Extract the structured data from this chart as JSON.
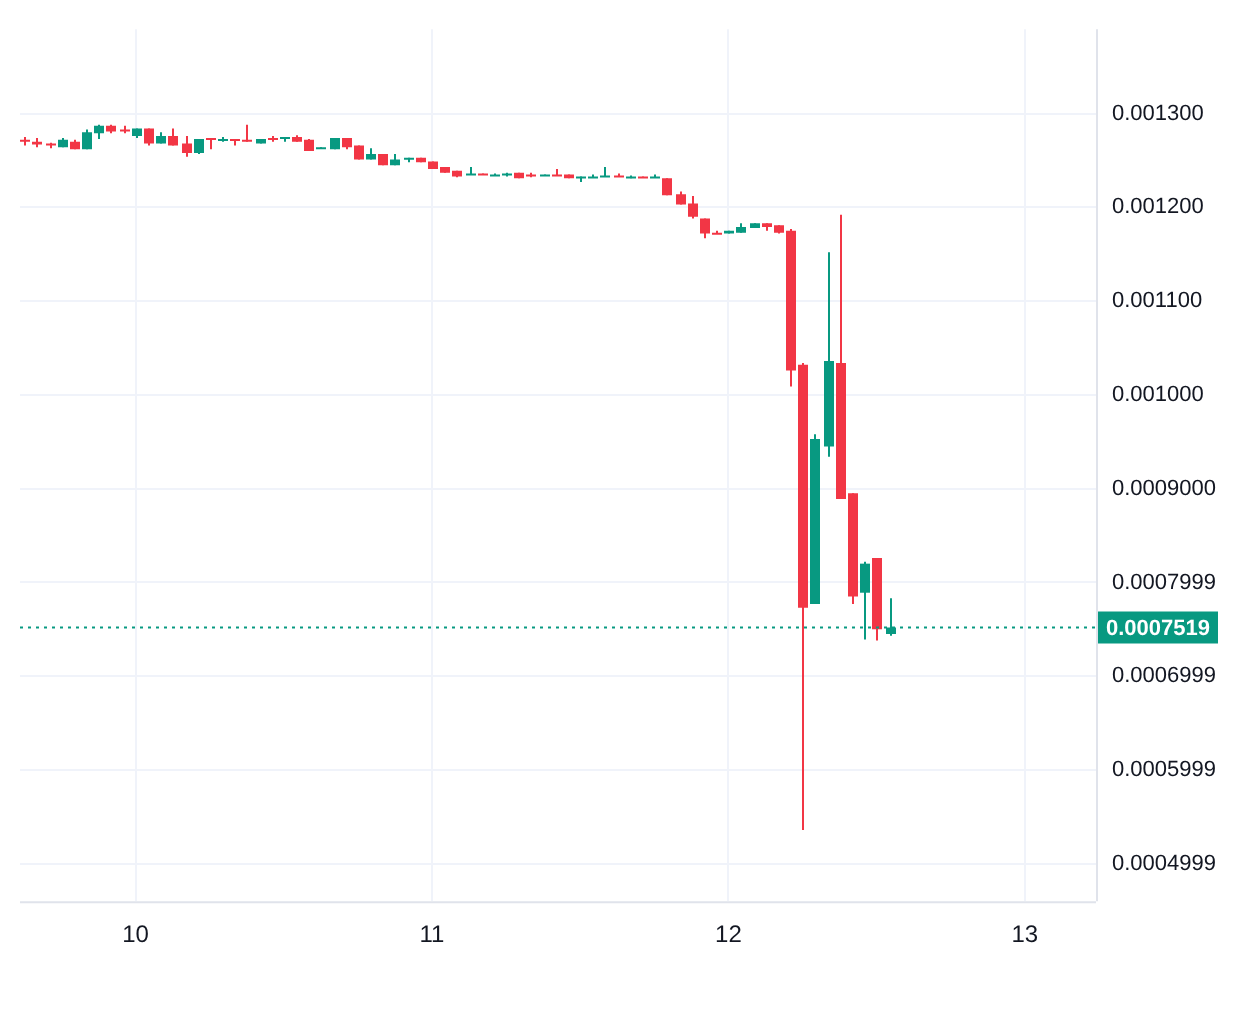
{
  "chart_data": {
    "type": "candlestick",
    "x": [
      9.625,
      9.6667,
      9.7083,
      9.75,
      9.7917,
      9.8333,
      9.875,
      9.9167,
      9.9583,
      10,
      10.0417,
      10.0833,
      10.125,
      10.1667,
      10.2083,
      10.25,
      10.2917,
      10.3333,
      10.375,
      10.4167,
      10.4583,
      10.5,
      10.5417,
      10.5833,
      10.625,
      10.6667,
      10.7083,
      10.75,
      10.7917,
      10.8333,
      10.875,
      10.9167,
      10.9583,
      11,
      11.0417,
      11.0833,
      11.125,
      11.1667,
      11.2083,
      11.25,
      11.2917,
      11.3333,
      11.375,
      11.4167,
      11.4583,
      11.5,
      11.5417,
      11.5833,
      11.625,
      11.6667,
      11.7083,
      11.75,
      11.7917,
      11.8333,
      11.875,
      11.9167,
      11.9583,
      12,
      12.0417,
      12.0833,
      12.125,
      12.1667,
      12.2083,
      12.25,
      12.2917,
      12.3333,
      12.375,
      12.4167,
      12.4583,
      12.5,
      12.5417
    ],
    "ohlc": [
      [
        0.001272,
        0.001275,
        0.001266,
        0.001271
      ],
      [
        0.00127,
        0.001274,
        0.001264,
        0.001267
      ],
      [
        0.001268,
        0.001269,
        0.001263,
        0.001266
      ],
      [
        0.001264,
        0.001274,
        0.001264,
        0.001272
      ],
      [
        0.00127,
        0.001272,
        0.001262,
        0.001262
      ],
      [
        0.001262,
        0.001283,
        0.001262,
        0.00128
      ],
      [
        0.001279,
        0.001288,
        0.001273,
        0.001287
      ],
      [
        0.001287,
        0.001288,
        0.001279,
        0.001281
      ],
      [
        0.001283,
        0.001287,
        0.001279,
        0.001282
      ],
      [
        0.001276,
        0.001284,
        0.001274,
        0.001284
      ],
      [
        0.001284,
        0.001284,
        0.001266,
        0.001268
      ],
      [
        0.001268,
        0.00128,
        0.001268,
        0.001276
      ],
      [
        0.001276,
        0.001284,
        0.001266,
        0.001266
      ],
      [
        0.001268,
        0.001276,
        0.001254,
        0.001258
      ],
      [
        0.001258,
        0.001273,
        0.001257,
        0.001273
      ],
      [
        0.001274,
        0.001274,
        0.001262,
        0.001273
      ],
      [
        0.001272,
        0.001275,
        0.00127,
        0.001273
      ],
      [
        0.001273,
        0.001273,
        0.001266,
        0.001272
      ],
      [
        0.001272,
        0.001288,
        0.00127,
        0.001271
      ],
      [
        0.001268,
        0.001273,
        0.001268,
        0.001273
      ],
      [
        0.001274,
        0.001276,
        0.00127,
        0.001273
      ],
      [
        0.001274,
        0.001275,
        0.00127,
        0.001275
      ],
      [
        0.001275,
        0.001277,
        0.00127,
        0.00127
      ],
      [
        0.001272,
        0.001273,
        0.00126,
        0.00126
      ],
      [
        0.001263,
        0.001264,
        0.001263,
        0.001264
      ],
      [
        0.001262,
        0.001274,
        0.001262,
        0.001274
      ],
      [
        0.001274,
        0.001274,
        0.001262,
        0.001264
      ],
      [
        0.001266,
        0.001266,
        0.001251,
        0.001251
      ],
      [
        0.001251,
        0.001263,
        0.001251,
        0.001257
      ],
      [
        0.001257,
        0.001257,
        0.001245,
        0.001245
      ],
      [
        0.001245,
        0.001257,
        0.001245,
        0.001251
      ],
      [
        0.001252,
        0.001253,
        0.001248,
        0.001253
      ],
      [
        0.001253,
        0.001253,
        0.001248,
        0.001248
      ],
      [
        0.001249,
        0.001249,
        0.001241,
        0.001241
      ],
      [
        0.001243,
        0.001243,
        0.001237,
        0.001237
      ],
      [
        0.001239,
        0.001239,
        0.001232,
        0.001233
      ],
      [
        0.001235,
        0.001243,
        0.001235,
        0.001236
      ],
      [
        0.001236,
        0.001236,
        0.001235,
        0.001235
      ],
      [
        0.001234,
        0.001236,
        0.001234,
        0.001235
      ],
      [
        0.001235,
        0.001237,
        0.001233,
        0.001236
      ],
      [
        0.001237,
        0.001237,
        0.001231,
        0.001231
      ],
      [
        0.001235,
        0.001237,
        0.001232,
        0.001234
      ],
      [
        0.001234,
        0.001235,
        0.001234,
        0.001235
      ],
      [
        0.001235,
        0.001241,
        0.001234,
        0.001234
      ],
      [
        0.001235,
        0.001235,
        0.001231,
        0.001231
      ],
      [
        0.001232,
        0.001233,
        0.001227,
        0.001233
      ],
      [
        0.001232,
        0.001235,
        0.001232,
        0.001233
      ],
      [
        0.001233,
        0.001243,
        0.001233,
        0.001234
      ],
      [
        0.001234,
        0.001236,
        0.001233,
        0.001233
      ],
      [
        0.001232,
        0.001234,
        0.001231,
        0.001233
      ],
      [
        0.001233,
        0.001233,
        0.001232,
        0.001232
      ],
      [
        0.001232,
        0.001235,
        0.001232,
        0.001233
      ],
      [
        0.001231,
        0.001231,
        0.001213,
        0.001213
      ],
      [
        0.001214,
        0.001217,
        0.001203,
        0.001203
      ],
      [
        0.001204,
        0.001212,
        0.001188,
        0.00119
      ],
      [
        0.001188,
        0.001188,
        0.001167,
        0.001172
      ],
      [
        0.001173,
        0.001175,
        0.001172,
        0.001172
      ],
      [
        0.001172,
        0.001175,
        0.001172,
        0.001175
      ],
      [
        0.001173,
        0.001183,
        0.001173,
        0.001179
      ],
      [
        0.001178,
        0.001183,
        0.001178,
        0.001183
      ],
      [
        0.001183,
        0.001183,
        0.001175,
        0.001179
      ],
      [
        0.001181,
        0.001181,
        0.001172,
        0.001173
      ],
      [
        0.001175,
        0.001177,
        0.001009,
        0.001026
      ],
      [
        0.001032,
        0.001034,
        0.000536,
        0.000773
      ],
      [
        0.000777,
        0.000958,
        0.000777,
        0.000953
      ],
      [
        0.000945,
        0.001152,
        0.000934,
        0.001036
      ],
      [
        0.001034,
        0.001192,
        0.000889,
        0.000889
      ],
      [
        0.000895,
        0.000895,
        0.000777,
        0.000785
      ],
      [
        0.000789,
        0.000822,
        0.000739,
        0.00082
      ],
      [
        0.000826,
        0.000826,
        0.000738,
        0.00075
      ],
      [
        0.000745,
        0.000783,
        0.000743,
        0.0007519
      ]
    ],
    "colors": [
      "#f23645",
      "#f23645",
      "#f23645",
      "#089981",
      "#f23645",
      "#089981",
      "#089981",
      "#f23645",
      "#f23645",
      "#089981",
      "#f23645",
      "#089981",
      "#f23645",
      "#f23645",
      "#089981",
      "#f23645",
      "#089981",
      "#f23645",
      "#f23645",
      "#089981",
      "#f23645",
      "#089981",
      "#f23645",
      "#f23645",
      "#089981",
      "#089981",
      "#f23645",
      "#f23645",
      "#089981",
      "#f23645",
      "#089981",
      "#089981",
      "#f23645",
      "#f23645",
      "#f23645",
      "#f23645",
      "#089981",
      "#f23645",
      "#089981",
      "#089981",
      "#f23645",
      "#f23645",
      "#089981",
      "#f23645",
      "#f23645",
      "#089981",
      "#089981",
      "#089981",
      "#f23645",
      "#089981",
      "#f23645",
      "#089981",
      "#f23645",
      "#f23645",
      "#f23645",
      "#f23645",
      "#f23645",
      "#089981",
      "#089981",
      "#089981",
      "#f23645",
      "#f23645",
      "#f23645",
      "#f23645",
      "#089981",
      "#089981",
      "#f23645",
      "#f23645",
      "#089981",
      "#f23645",
      "#089981"
    ],
    "xlim": [
      9.61,
      13.24
    ],
    "xticks": [
      10,
      11,
      12,
      13
    ],
    "ylim": [
      0.00046,
      0.00139
    ],
    "yticks": [
      {
        "value": 0.0004999,
        "label": "0.0004999"
      },
      {
        "value": 0.0005999,
        "label": "0.0005999"
      },
      {
        "value": 0.0006999,
        "label": "0.0006999"
      },
      {
        "value": 0.0007999,
        "label": "0.0007999"
      },
      {
        "value": 0.0009,
        "label": "0.0009000"
      },
      {
        "value": 0.001,
        "label": "0.001000"
      },
      {
        "value": 0.0011,
        "label": "0.001100"
      },
      {
        "value": 0.0012,
        "label": "0.001200"
      },
      {
        "value": 0.0013,
        "label": "0.001300"
      }
    ],
    "ref_lines": [
      {
        "axis": "y",
        "value": 0.0007519,
        "label": "0.0007519",
        "color": "#089981",
        "line_style": "dotted"
      }
    ],
    "grid": true
  }
}
